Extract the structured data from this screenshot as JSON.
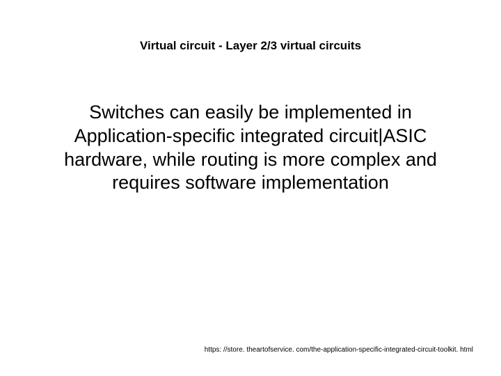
{
  "slide": {
    "title": "Virtual circuit - Layer 2/3 virtual circuits",
    "body": "Switches can easily be implemented in Application-specific integrated circuit|ASIC hardware, while routing is more complex and requires software implementation",
    "footer_url": "https: //store. theartofservice. com/the-application-specific-integrated-circuit-toolkit. html"
  },
  "style": {
    "background_color": "#ffffff",
    "text_color": "#000000",
    "title_fontsize": 17,
    "title_fontweight": "bold",
    "body_fontsize": 27,
    "body_fontweight": "normal",
    "footer_fontsize": 10,
    "font_family": "Arial, Helvetica, sans-serif"
  }
}
